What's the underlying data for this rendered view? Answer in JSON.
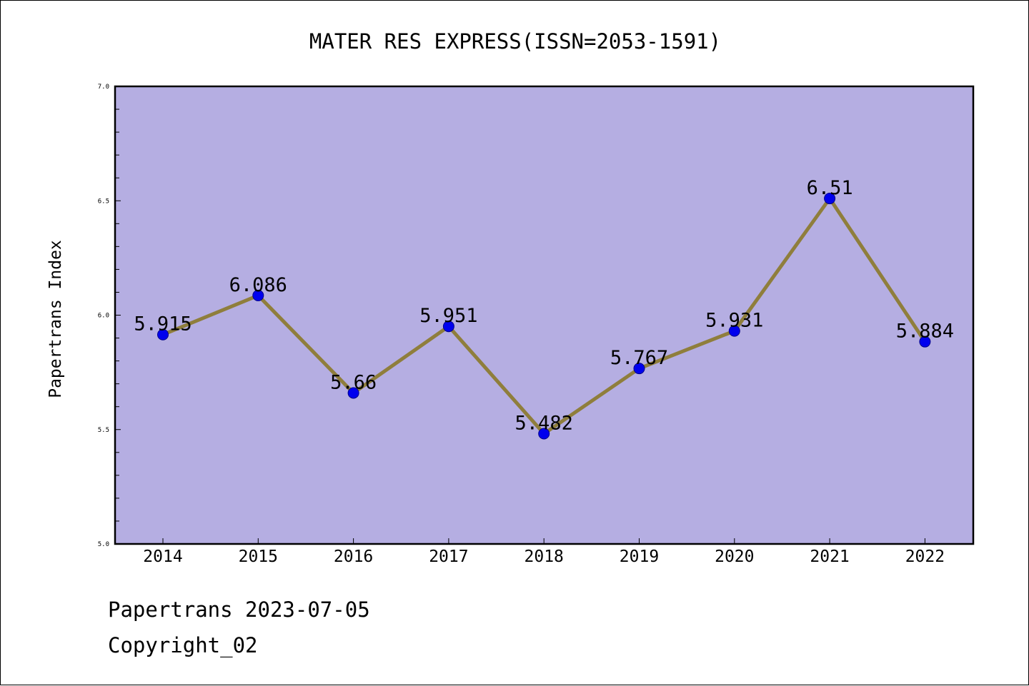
{
  "chart_data": {
    "type": "line",
    "title": "MATER RES EXPRESS(ISSN=2053-1591)",
    "xlabel": "",
    "ylabel": "Papertrans Index",
    "categories": [
      "2014",
      "2015",
      "2016",
      "2017",
      "2018",
      "2019",
      "2020",
      "2021",
      "2022"
    ],
    "series": [
      {
        "values": [
          5.915,
          6.086,
          5.66,
          5.951,
          5.482,
          5.767,
          5.931,
          6.51,
          5.884
        ],
        "labels": [
          "5.915",
          "6.086",
          "5.66",
          "5.951",
          "5.482",
          "5.767",
          "5.931",
          "6.51",
          "5.884"
        ]
      }
    ],
    "ylim": [
      5.0,
      7.0
    ],
    "yticks": [
      "5.0",
      "5.5",
      "6.0",
      "6.5",
      "7.0"
    ],
    "grid": false,
    "colors": {
      "plot_background": "#b5aee2",
      "line": "#8f7e3c",
      "marker": "#0000ee"
    }
  },
  "footer": {
    "date_line": "Papertrans 2023-07-05",
    "copyright_line": "Copyright_02"
  }
}
